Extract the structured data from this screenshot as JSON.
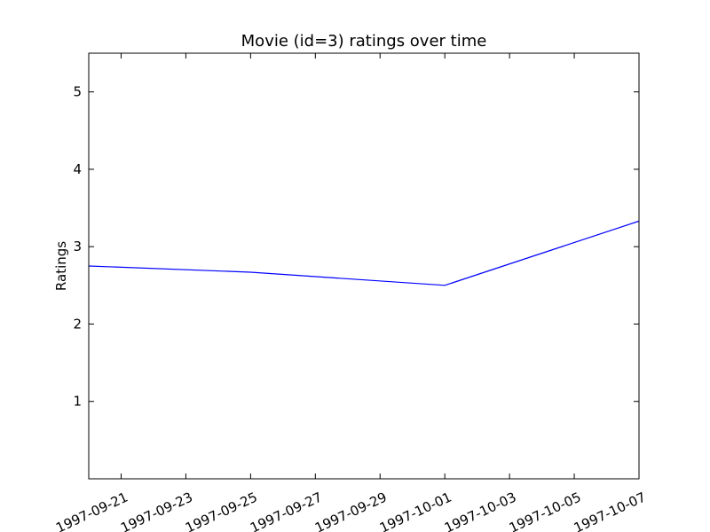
{
  "chart_data": {
    "type": "line",
    "title": "Movie (id=3) ratings over time",
    "xlabel": "",
    "ylabel": "Ratings",
    "x_type": "date",
    "xlim": [
      "1997-09-20",
      "1997-10-07"
    ],
    "ylim": [
      0,
      5.5
    ],
    "grid": false,
    "x_ticks": [
      "1997-09-21",
      "1997-09-23",
      "1997-09-25",
      "1997-09-27",
      "1997-09-29",
      "1997-10-01",
      "1997-10-03",
      "1997-10-05",
      "1997-10-07"
    ],
    "y_ticks": [
      1,
      2,
      3,
      4,
      5
    ],
    "series": [
      {
        "color": "#0000ff",
        "points": [
          {
            "x": "1997-09-20",
            "y": 2.75
          },
          {
            "x": "1997-09-25",
            "y": 2.67
          },
          {
            "x": "1997-10-01",
            "y": 2.5
          },
          {
            "x": "1997-10-07",
            "y": 3.33
          }
        ]
      }
    ]
  }
}
